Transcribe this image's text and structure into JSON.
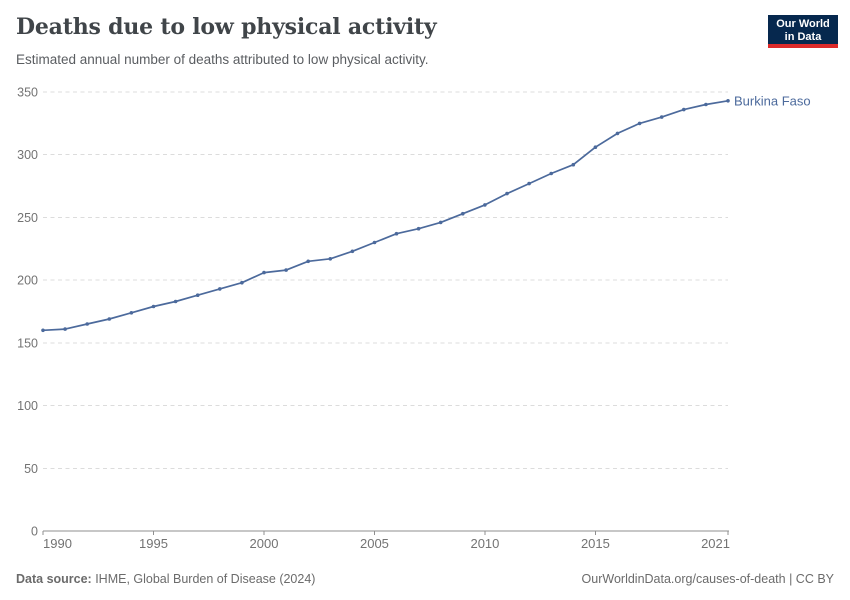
{
  "header": {
    "title": "Deaths due to low physical activity",
    "subtitle": "Estimated annual number of deaths attributed to low physical activity."
  },
  "logo": {
    "line1": "Our World",
    "line2": "in Data"
  },
  "chart_data": {
    "type": "line",
    "title": "Deaths due to low physical activity",
    "subtitle": "Estimated annual number of deaths attributed to low physical activity.",
    "x": [
      1990,
      1991,
      1992,
      1993,
      1994,
      1995,
      1996,
      1997,
      1998,
      1999,
      2000,
      2001,
      2002,
      2003,
      2004,
      2005,
      2006,
      2007,
      2008,
      2009,
      2010,
      2011,
      2012,
      2013,
      2014,
      2015,
      2016,
      2017,
      2018,
      2019,
      2020,
      2021
    ],
    "series": [
      {
        "name": "Burkina Faso",
        "values": [
          160,
          161,
          165,
          169,
          174,
          179,
          183,
          188,
          193,
          198,
          206,
          208,
          215,
          217,
          223,
          230,
          237,
          241,
          246,
          253,
          260,
          269,
          277,
          285,
          292,
          306,
          317,
          325,
          330,
          336,
          340,
          343
        ]
      }
    ],
    "xlabel": "",
    "ylabel": "",
    "xlim": [
      1990,
      2021
    ],
    "ylim": [
      0,
      350
    ],
    "y_ticks": [
      0,
      50,
      100,
      150,
      200,
      250,
      300,
      350
    ],
    "x_ticks": [
      1990,
      1995,
      2000,
      2005,
      2010,
      2015,
      2021
    ],
    "grid": "horizontal-dashed",
    "legend_position": "end-of-line-label"
  },
  "footer": {
    "source_label": "Data source:",
    "source_text": " IHME, Global Burden of Disease (2024)",
    "link_text": "OurWorldinData.org/causes-of-death",
    "license_text": " | CC BY"
  },
  "colors": {
    "line": "#4c6a9c",
    "series_label": "#4c6a9c",
    "grid": "#dcdcdc",
    "axis": "#8f8f8f",
    "tick_label": "#737373",
    "title": "#404549",
    "subtitle": "#5a5d61",
    "footer": "#6b6b6b",
    "logo_bg": "#06284e",
    "logo_bar": "#dc2a2a"
  }
}
